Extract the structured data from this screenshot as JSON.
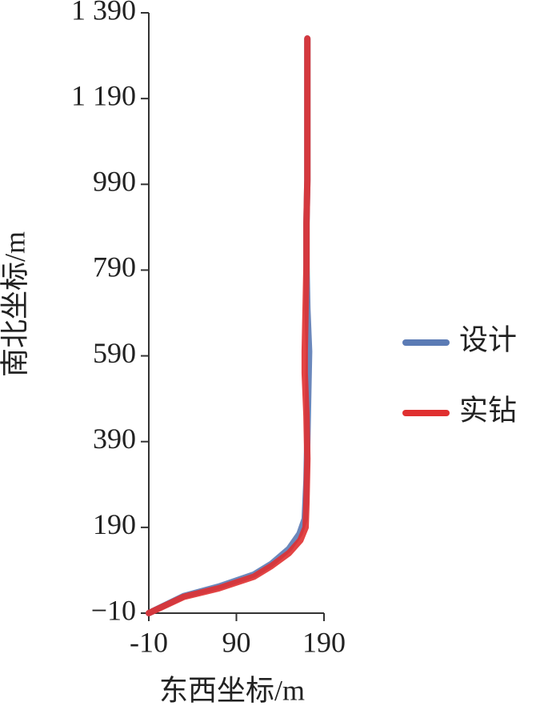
{
  "chart_data": {
    "type": "line",
    "xlabel": "东西坐标/m",
    "ylabel": "南北坐标/m",
    "xlim": [
      -10,
      190
    ],
    "ylim": [
      -10,
      1390
    ],
    "xticks": [
      -10,
      90,
      190
    ],
    "yticks": [
      {
        "value": -10,
        "label": "−10"
      },
      190,
      390,
      590,
      790,
      990,
      {
        "value": 1190,
        "label": "1 190"
      },
      {
        "value": 1390,
        "label": "1 390"
      }
    ],
    "series": [
      {
        "name": "设计",
        "color": "#5b7bb5",
        "x": [
          -10,
          30,
          70,
          110,
          130,
          150,
          162,
          168,
          170,
          171,
          172,
          173,
          171,
          170,
          170,
          171,
          171,
          171,
          171
        ],
        "values": [
          -10,
          30,
          52,
          80,
          105,
          140,
          175,
          210,
          300,
          400,
          500,
          600,
          700,
          800,
          900,
          1000,
          1100,
          1200,
          1330
        ]
      },
      {
        "name": "实钻",
        "color": "#e03030",
        "x": [
          -10,
          30,
          70,
          110,
          130,
          150,
          163,
          169,
          170,
          171,
          170,
          168,
          168,
          169,
          170,
          170,
          171,
          171,
          171,
          171
        ],
        "values": [
          -10,
          28,
          48,
          75,
          100,
          130,
          160,
          190,
          250,
          350,
          450,
          550,
          600,
          700,
          800,
          900,
          1000,
          1100,
          1200,
          1330
        ]
      }
    ]
  }
}
